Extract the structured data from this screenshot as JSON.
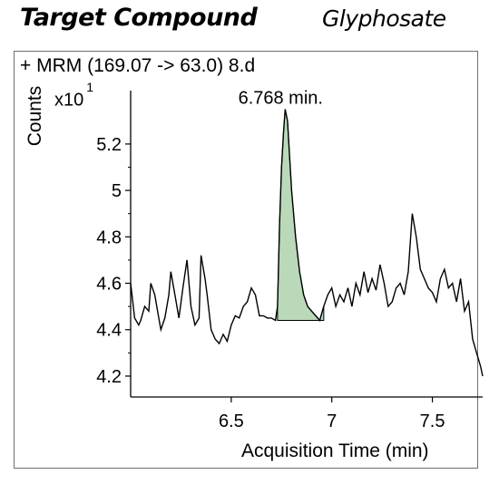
{
  "header": {
    "left_title": "Target Compound",
    "right_title": "Glyphosate"
  },
  "chart_data": {
    "type": "line",
    "trace_label": "+ MRM (169.07 -> 63.0) 8.d",
    "ylabel": "Counts",
    "y_multiplier": "x10",
    "y_multiplier_exp": "1",
    "xlabel": "Acquisition Time (min)",
    "xlim": [
      6.0,
      7.75
    ],
    "ylim": [
      4.11,
      5.43
    ],
    "xticks": [
      6.5,
      7,
      7.5
    ],
    "xtick_labels": [
      "6.5",
      "7",
      "7.5"
    ],
    "yticks": [
      4.2,
      4.4,
      4.6,
      4.8,
      5.0,
      5.2
    ],
    "ytick_labels": [
      "4.2",
      "4.4",
      "4.6",
      "4.8",
      "5",
      "5.2"
    ],
    "peak_annotation": "6.768 min.",
    "peak_x": 6.768,
    "peak_y": 5.35,
    "integration": {
      "x_start": 6.73,
      "x_end": 6.96,
      "baseline": 4.44,
      "fill_color": "#b9d9b9"
    },
    "line_color": "#000000",
    "series": [
      {
        "x": [
          6.0,
          6.02,
          6.04,
          6.05,
          6.07,
          6.09,
          6.1,
          6.12,
          6.14,
          6.15,
          6.17,
          6.19,
          6.2,
          6.22,
          6.24,
          6.26,
          6.28,
          6.3,
          6.32,
          6.34,
          6.35,
          6.37,
          6.38,
          6.4,
          6.42,
          6.44,
          6.46,
          6.48,
          6.5,
          6.52,
          6.54,
          6.56,
          6.58,
          6.6,
          6.62,
          6.64,
          6.66,
          6.68,
          6.7,
          6.72,
          6.73,
          6.74,
          6.75,
          6.76,
          6.768,
          6.78,
          6.8,
          6.82,
          6.84,
          6.86,
          6.88,
          6.9,
          6.92,
          6.94,
          6.96,
          6.98,
          7.0,
          7.02,
          7.04,
          7.06,
          7.08,
          7.1,
          7.12,
          7.14,
          7.16,
          7.18,
          7.2,
          7.22,
          7.24,
          7.26,
          7.28,
          7.3,
          7.32,
          7.34,
          7.36,
          7.38,
          7.4,
          7.42,
          7.44,
          7.46,
          7.48,
          7.5,
          7.52,
          7.54,
          7.56,
          7.58,
          7.6,
          7.62,
          7.64,
          7.66,
          7.68,
          7.7,
          7.72,
          7.74,
          7.75
        ],
        "y": [
          4.6,
          4.45,
          4.42,
          4.44,
          4.5,
          4.48,
          4.6,
          4.55,
          4.45,
          4.4,
          4.45,
          4.55,
          4.65,
          4.55,
          4.45,
          4.58,
          4.7,
          4.5,
          4.42,
          4.45,
          4.72,
          4.62,
          4.55,
          4.4,
          4.36,
          4.34,
          4.38,
          4.35,
          4.42,
          4.46,
          4.45,
          4.5,
          4.52,
          4.58,
          4.55,
          4.46,
          4.46,
          4.45,
          4.45,
          4.44,
          4.5,
          4.85,
          5.1,
          5.25,
          5.35,
          5.3,
          5.0,
          4.8,
          4.65,
          4.55,
          4.5,
          4.48,
          4.46,
          4.44,
          4.5,
          4.55,
          4.58,
          4.5,
          4.55,
          4.52,
          4.58,
          4.5,
          4.6,
          4.55,
          4.65,
          4.56,
          4.62,
          4.57,
          4.68,
          4.6,
          4.5,
          4.52,
          4.58,
          4.6,
          4.55,
          4.65,
          4.9,
          4.8,
          4.66,
          4.62,
          4.58,
          4.56,
          4.52,
          4.62,
          4.66,
          4.58,
          4.6,
          4.52,
          4.62,
          4.48,
          4.52,
          4.36,
          4.3,
          4.24,
          4.2
        ]
      }
    ]
  }
}
